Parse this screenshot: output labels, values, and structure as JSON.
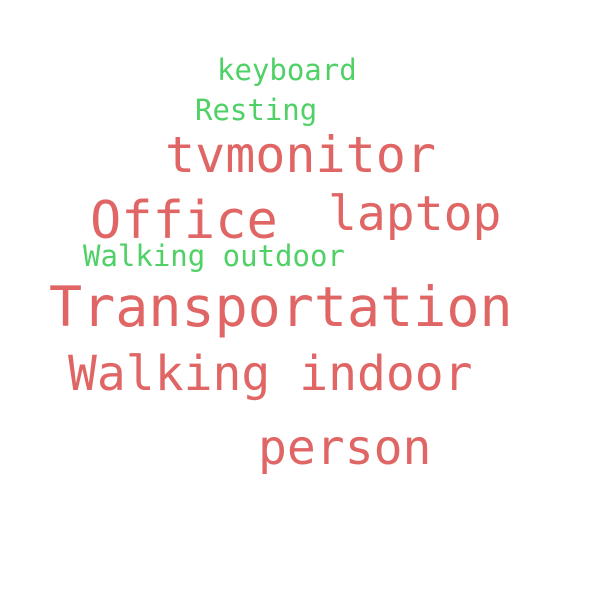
{
  "words": {
    "keyboard": "keyboard",
    "resting": "Resting",
    "tvmonitor": "tvmonitor",
    "office": "Office",
    "laptop": "laptop",
    "walking_outdoor": "Walking outdoor",
    "transportation": "Transportation",
    "walking_indoor": "Walking indoor",
    "person": "person"
  },
  "colors": {
    "primary": "#e06666",
    "secondary": "#4fd166",
    "background": "#ffffff"
  }
}
